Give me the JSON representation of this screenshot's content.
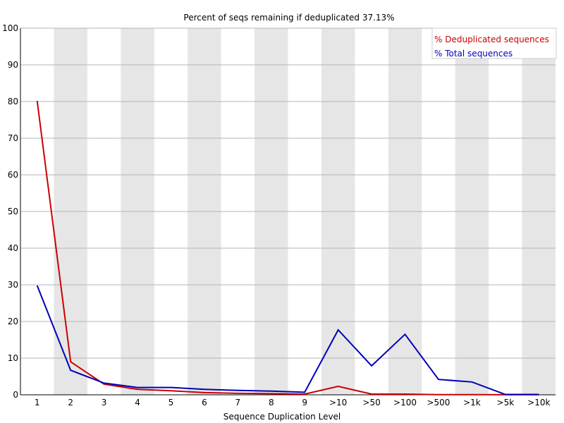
{
  "chart_data": {
    "type": "line",
    "title": "Percent of seqs remaining if deduplicated 37.13%",
    "xlabel": "Sequence Duplication Level",
    "ylabel": "",
    "ylim": [
      0,
      100
    ],
    "yticks": [
      0,
      10,
      20,
      30,
      40,
      50,
      60,
      70,
      80,
      90,
      100
    ],
    "categories": [
      "1",
      "2",
      "3",
      "4",
      "5",
      "6",
      "7",
      "8",
      "9",
      ">10",
      ">50",
      ">100",
      ">500",
      ">1k",
      ">5k",
      ">10k"
    ],
    "grid": true,
    "legend_position": "top-right",
    "series": [
      {
        "name": "% Deduplicated sequences",
        "color": "#cc0000",
        "values": [
          80.2,
          9.0,
          2.9,
          1.5,
          1.1,
          0.6,
          0.4,
          0.3,
          0.2,
          2.3,
          0.2,
          0.2,
          0.05,
          0.05,
          0.01,
          0.01
        ]
      },
      {
        "name": "% Total sequences",
        "color": "#0000bb",
        "values": [
          29.8,
          6.7,
          3.2,
          2.0,
          2.0,
          1.5,
          1.2,
          1.0,
          0.7,
          17.7,
          7.9,
          16.5,
          4.2,
          3.5,
          0.1,
          0.1
        ]
      }
    ]
  }
}
